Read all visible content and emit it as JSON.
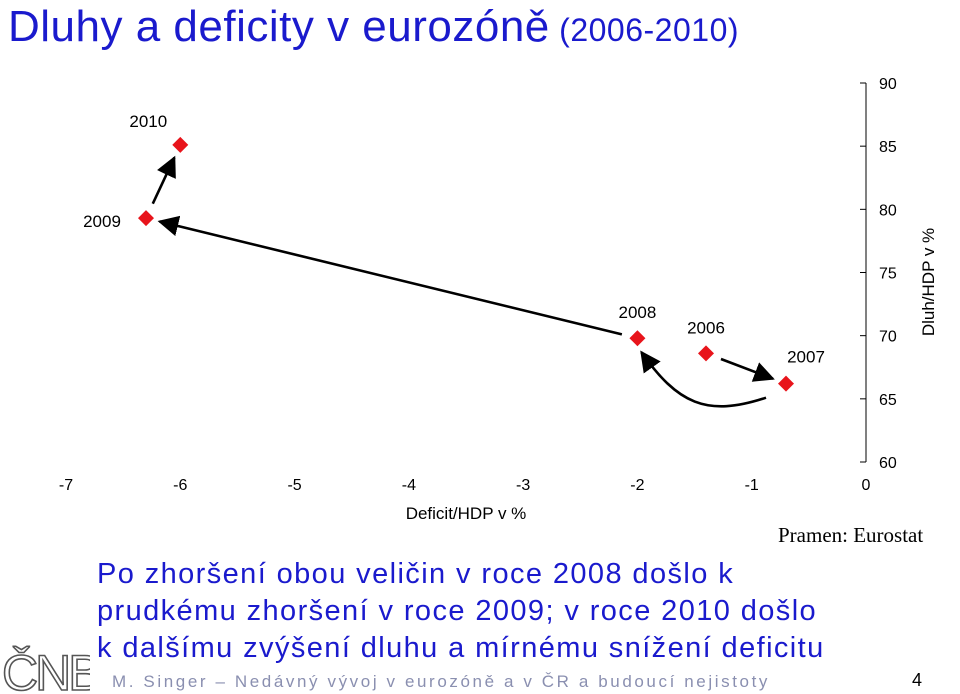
{
  "slide": {
    "title": "Dluhy a deficity v eurozóně",
    "title_years": "(2006-2010)",
    "source": "Pramen: Eurostat",
    "summary_lines": [
      "Po zhoršení obou veličin v roce 2008 došlo k",
      "prudkému zhoršení v roce 2009; v roce 2010 došlo",
      "k dalšímu zvýšení dluhu a mírnému snížení deficitu"
    ],
    "footer": "M. Singer – Nedávný vývoj v eurozóně a v ČR a budoucí nejistoty",
    "page_number": "4",
    "logo_text": "ČNB",
    "colors": {
      "title": "#1a1acd",
      "marker": "#e8141b",
      "footer": "#8a8fb0"
    }
  },
  "chart_data": {
    "type": "scatter",
    "xlabel": "Deficit/HDP v %",
    "ylabel": "Dluh/HDP v %",
    "xlim": [
      -7,
      0
    ],
    "ylim": [
      60,
      90
    ],
    "x_ticks": [
      -7,
      -6,
      -5,
      -4,
      -3,
      -2,
      -1,
      0
    ],
    "y_ticks": [
      60,
      65,
      70,
      75,
      80,
      85,
      90
    ],
    "y_axis_side": "right",
    "grid": false,
    "series": [
      {
        "points": [
          {
            "label": "2006",
            "x": -1.4,
            "y": 68.6
          },
          {
            "label": "2007",
            "x": -0.7,
            "y": 66.2
          },
          {
            "label": "2008",
            "x": -2.0,
            "y": 69.8
          },
          {
            "label": "2009",
            "x": -6.3,
            "y": 79.3
          },
          {
            "label": "2010",
            "x": -6.0,
            "y": 85.1
          }
        ]
      }
    ],
    "arrows": [
      {
        "from": "2006",
        "to": "2007"
      },
      {
        "from": "2007",
        "to": "2008"
      },
      {
        "from": "2008",
        "to": "2009"
      },
      {
        "from": "2009",
        "to": "2010"
      }
    ]
  }
}
